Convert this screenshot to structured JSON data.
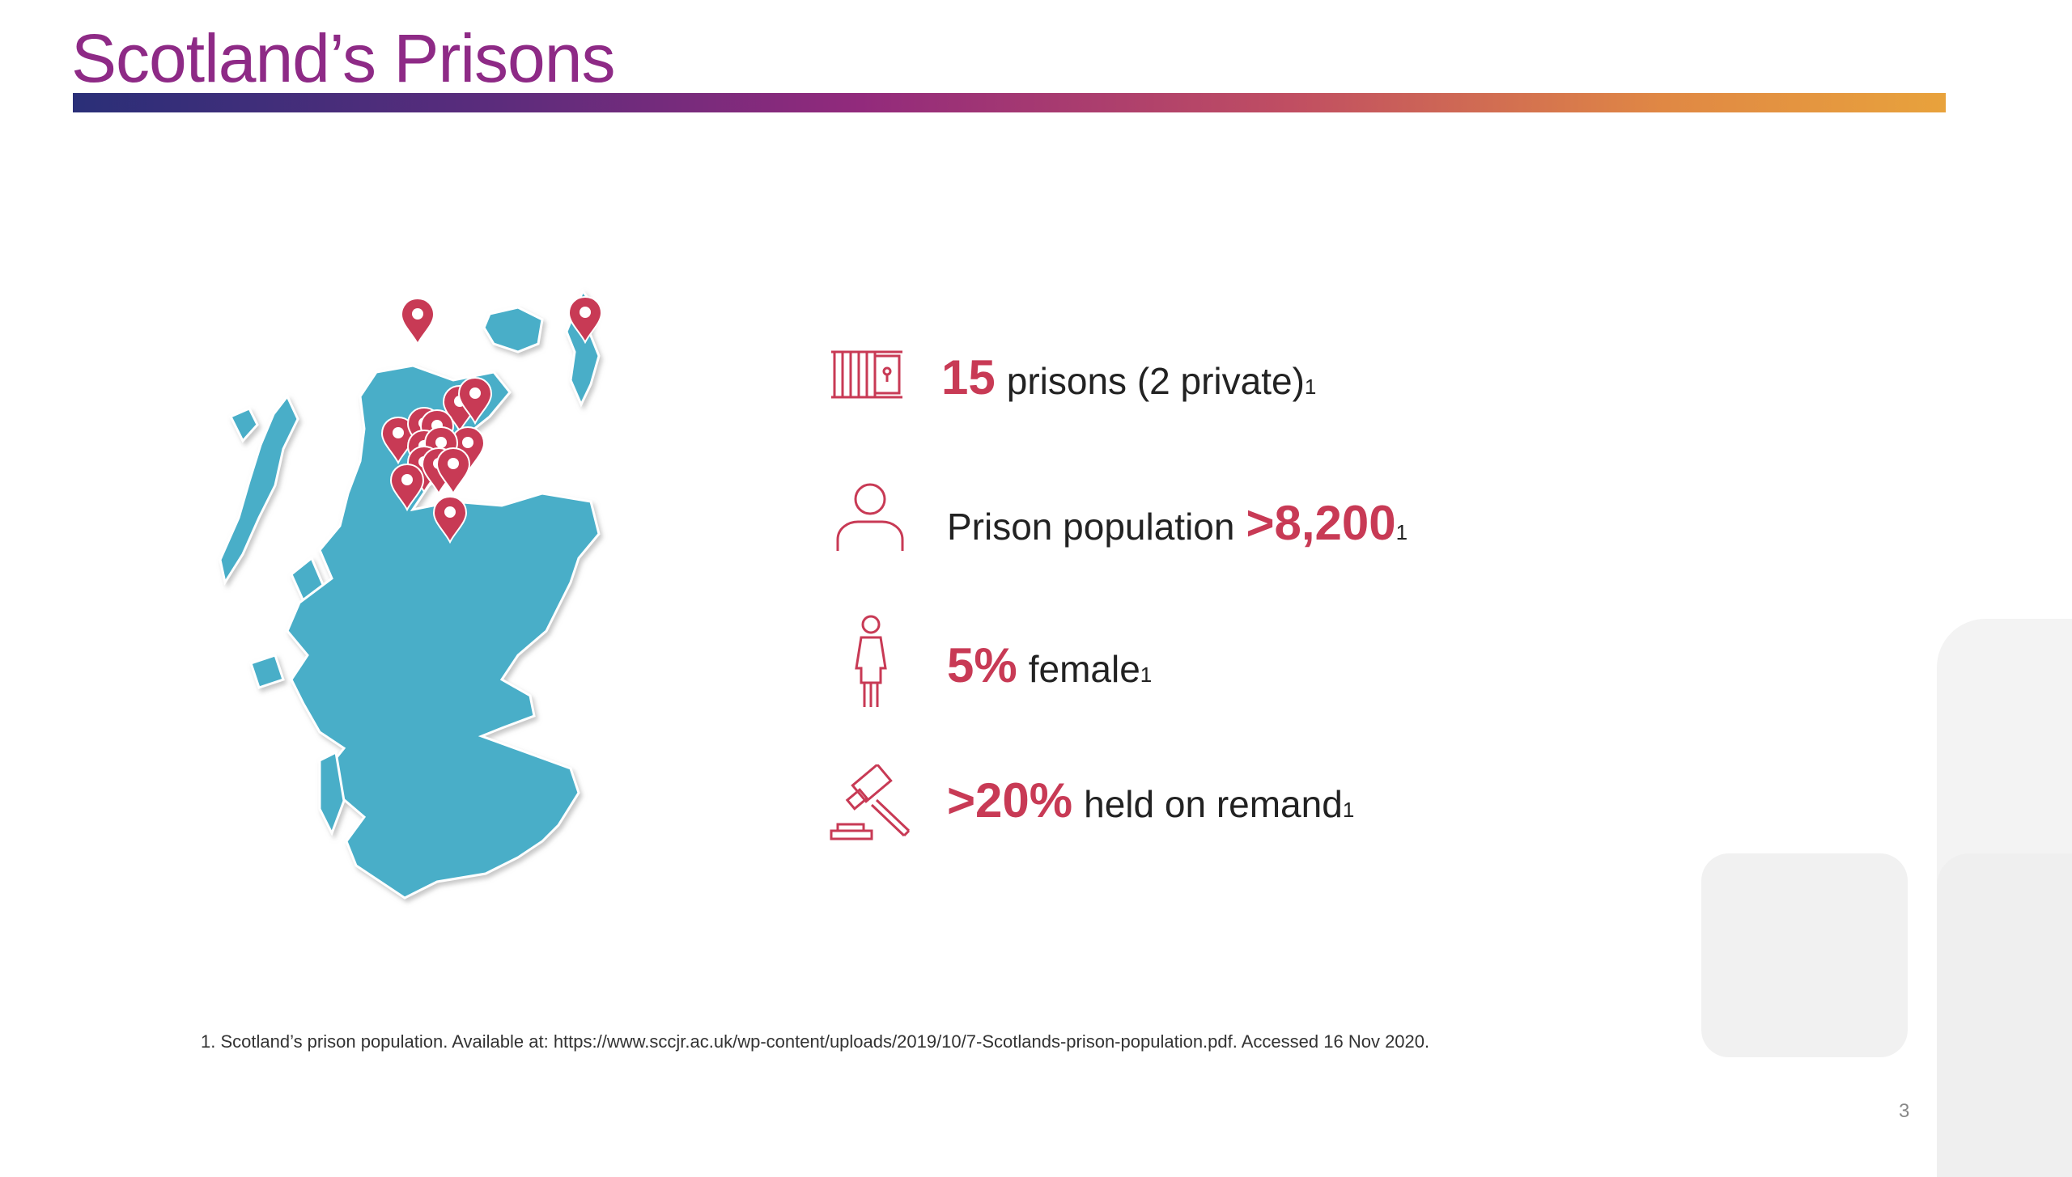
{
  "slide": {
    "title": "Scotland’s Prisons",
    "page_number": "3"
  },
  "stats": [
    {
      "icon": "prison-cell-icon",
      "highlight": "15",
      "text": "prisons (2 private)",
      "sup": "1"
    },
    {
      "icon": "person-icon",
      "text": "Prison population",
      "highlight": ">8,200",
      "sup": "1"
    },
    {
      "icon": "female-icon",
      "highlight": "5%",
      "text": "female",
      "sup": "1"
    },
    {
      "icon": "gavel-icon",
      "highlight": ">20%",
      "text": "held on remand",
      "sup": "1"
    }
  ],
  "footnote": "1. Scotland’s prison population. Available at: https://www.sccjr.ac.uk/wp-content/uploads/2019/10/7-Scotlands-prison-population.pdf. Accessed 16 Nov 2020.",
  "map": {
    "icon": "scotland-map-icon",
    "marker_icon": "map-pin-icon"
  },
  "colors": {
    "accent": "#c83a55",
    "title": "#8e2a86",
    "map_fill": "#4aaec8"
  }
}
